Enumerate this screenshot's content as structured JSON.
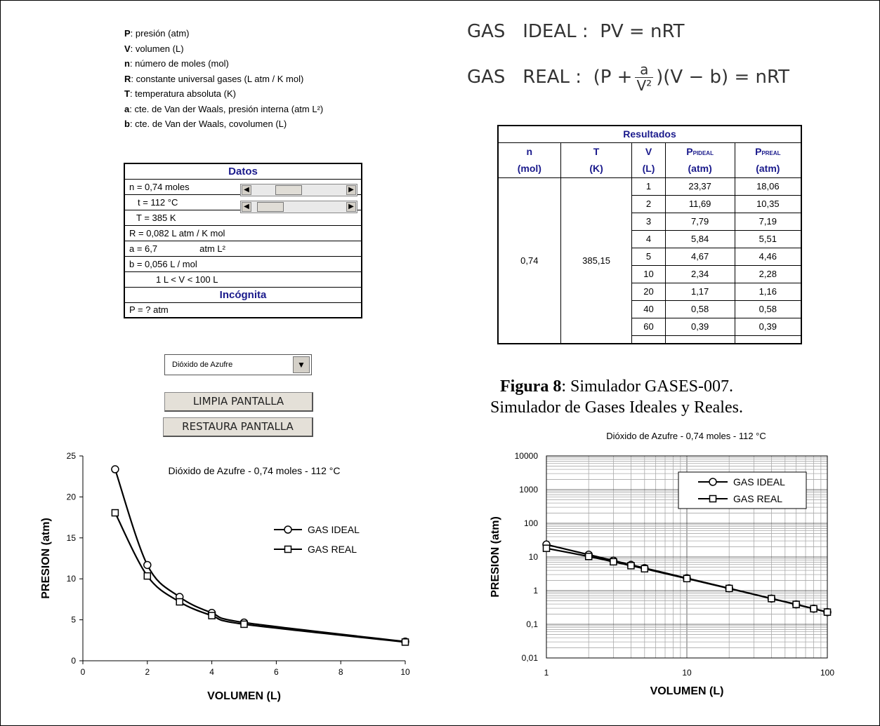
{
  "variables": [
    {
      "sym": "P",
      "desc": ": presión (atm)"
    },
    {
      "sym": "V",
      "desc": ": volumen (L)"
    },
    {
      "sym": "n",
      "desc": ": número de moles (mol)"
    },
    {
      "sym": "R",
      "desc": ": constante universal gases (L atm / K mol)"
    },
    {
      "sym": "T",
      "desc": ": temperatura absoluta (K)"
    },
    {
      "sym": "a",
      "desc": ": cte. de Van der Waals, presión interna (atm L²)"
    },
    {
      "sym": "b",
      "desc": ": cte. de Van der Waals, covolumen (L)"
    }
  ],
  "formulas": {
    "ideal_label": "GAS   IDEAL :",
    "ideal_eq": "PV = nRT",
    "real_label": "GAS   REAL :",
    "real_pre": "(P +",
    "real_num": "a",
    "real_den": "V²",
    "real_post": ")(V − b) = nRT"
  },
  "datos": {
    "title": "Datos",
    "n": "n = 0,74 moles",
    "t": "t = 112 °C",
    "T": "T = 385 K",
    "R": "R =  0,082  L atm / K mol",
    "a_label": "a =  6,7",
    "a_unit": "atm L²",
    "b": "b =  0,056 L / mol",
    "range": "1 L < V < 100 L",
    "incognita": "Incógnita",
    "P": "P = ? atm",
    "n_slider": 0.35,
    "t_slider": 0.08
  },
  "resultados": {
    "title": "Resultados",
    "headers": [
      "n",
      "T",
      "V",
      "PIDEAL",
      "PREAL"
    ],
    "units": [
      "(mol)",
      "(K)",
      "(L)",
      "(atm)",
      "(atm)"
    ],
    "n_val": "0,74",
    "T_val": "385,15",
    "rows": [
      [
        "1",
        "23,37",
        "18,06"
      ],
      [
        "2",
        "11,69",
        "10,35"
      ],
      [
        "3",
        "7,79",
        "7,19"
      ],
      [
        "4",
        "5,84",
        "5,51"
      ],
      [
        "5",
        "4,67",
        "4,46"
      ],
      [
        "10",
        "2,34",
        "2,28"
      ],
      [
        "20",
        "1,17",
        "1,16"
      ],
      [
        "40",
        "0,58",
        "0,58"
      ],
      [
        "60",
        "0,39",
        "0,39"
      ]
    ]
  },
  "gas_select": "Dióxido de Azufre",
  "buttons": {
    "clear": "LIMPIA PANTALLA",
    "restore": "RESTAURA PANTALLA"
  },
  "caption": {
    "bold": "Figura 8",
    "line1": ": Simulador GASES-007.",
    "line2": "Simulador de Gases Ideales y Reales."
  },
  "chart_data": [
    {
      "type": "line",
      "title": "Dióxido de Azufre - 0,74 moles - 112 °C",
      "xlabel": "VOLUMEN (L)",
      "ylabel": "PRESION (atm)",
      "xlim": [
        0,
        10
      ],
      "ylim": [
        0,
        25
      ],
      "xticks": [
        "0",
        "2",
        "4",
        "6",
        "8",
        "10"
      ],
      "yticks": [
        "0",
        "5",
        "10",
        "15",
        "20",
        "25"
      ],
      "legend": "right",
      "series": [
        {
          "name": "GAS IDEAL",
          "marker": "circle",
          "x": [
            1,
            2,
            3,
            4,
            5,
            10
          ],
          "y": [
            23.37,
            11.69,
            7.79,
            5.84,
            4.67,
            2.34
          ]
        },
        {
          "name": "GAS REAL",
          "marker": "square",
          "x": [
            1,
            2,
            3,
            4,
            5,
            10
          ],
          "y": [
            18.06,
            10.35,
            7.19,
            5.51,
            4.46,
            2.28
          ]
        }
      ]
    },
    {
      "type": "line",
      "title": "Dióxido de Azufre - 0,74 moles - 112 °C",
      "xlabel": "VOLUMEN (L)",
      "ylabel": "PRESION (atm)",
      "xscale": "log",
      "yscale": "log",
      "xlim": [
        1,
        100
      ],
      "ylim": [
        0.01,
        10000
      ],
      "xticks": [
        "1",
        "10",
        "100"
      ],
      "yticks": [
        "0,01",
        "0,1",
        "1",
        "10",
        "100",
        "1000",
        "10000"
      ],
      "grid": true,
      "legend": "top-right",
      "series": [
        {
          "name": "GAS IDEAL",
          "marker": "circle",
          "x": [
            1,
            2,
            3,
            4,
            5,
            10,
            20,
            40,
            60,
            80,
            100
          ],
          "y": [
            23.37,
            11.69,
            7.79,
            5.84,
            4.67,
            2.34,
            1.17,
            0.58,
            0.39,
            0.29,
            0.23
          ]
        },
        {
          "name": "GAS REAL",
          "marker": "square",
          "x": [
            1,
            2,
            3,
            4,
            5,
            10,
            20,
            40,
            60,
            80,
            100
          ],
          "y": [
            18.06,
            10.35,
            7.19,
            5.51,
            4.46,
            2.28,
            1.16,
            0.58,
            0.39,
            0.29,
            0.23
          ]
        }
      ]
    }
  ]
}
